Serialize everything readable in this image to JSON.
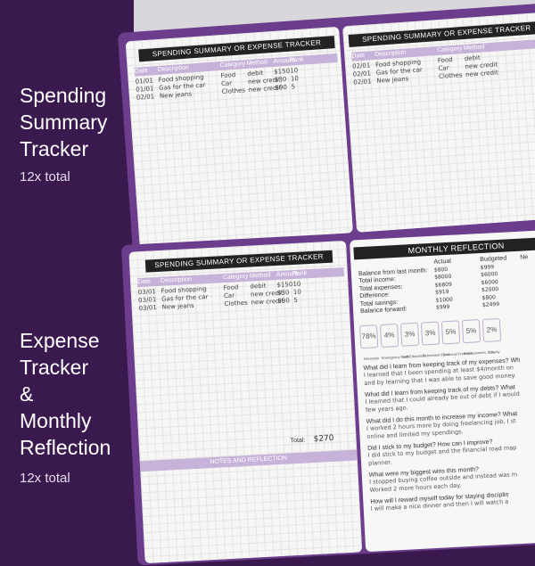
{
  "captions": {
    "top_title": [
      "Spending",
      "Summary",
      "Tracker"
    ],
    "top_sub": "12x total",
    "bottom_title": [
      "Expense",
      "Tracker",
      "&",
      "Monthly",
      "Reflection"
    ],
    "bottom_sub": "12x total"
  },
  "colors": {
    "background": "#3a1a4e",
    "accent": "#c7b3d9",
    "banner": "#222222"
  },
  "tracker": {
    "title": "SPENDING SUMMARY OR EXPENSE TRACKER",
    "columns": [
      "Date",
      "Description",
      "Category",
      "Method",
      "Amount",
      "Rank"
    ]
  },
  "page_top_left": {
    "rows": [
      [
        "01/01",
        "Food shopping",
        "Food",
        "debit",
        "$150",
        "10"
      ],
      [
        "01/01",
        "Gas for the car",
        "Car",
        "new credit",
        "$30",
        "10"
      ],
      [
        "02/01",
        "New jeans",
        "Clothes",
        "new credit",
        "$90",
        "5"
      ]
    ]
  },
  "page_top_right": {
    "rows": [
      [
        "02/01",
        "Food shopping",
        "Food",
        "debit"
      ],
      [
        "02/01",
        "Gas for the car",
        "Car",
        "new credit"
      ],
      [
        "02/01",
        "New jeans",
        "Clothes",
        "new credit"
      ]
    ]
  },
  "page_bottom_left": {
    "rows": [
      [
        "03/01",
        "Food shopping",
        "Food",
        "debit",
        "$150",
        "10"
      ],
      [
        "03/01",
        "Gas for the car",
        "Car",
        "new credit",
        "$30",
        "10"
      ],
      [
        "03/01",
        "New jeans",
        "Clothes",
        "new credit",
        "$90",
        "5"
      ]
    ],
    "total_label": "Total:",
    "total_value": "$270",
    "notes_label": "NOTES AND REFLECTION"
  },
  "reflection": {
    "title": "MONTHLY REFLECTION",
    "col_actual": "Actual",
    "col_budgeted": "Budgeted",
    "col_next": "Ne",
    "lines": [
      [
        "Balance from last month:",
        "$800",
        "$999"
      ],
      [
        "Total income:",
        "$8000",
        "$6000"
      ],
      [
        "Total expenses:",
        "$6809",
        "$6000"
      ],
      [
        "Difference:",
        "$919",
        "$2000"
      ],
      [
        "Total savings:",
        "$1000",
        "$800"
      ],
      [
        "Balance forward:",
        "$999",
        "$2499"
      ]
    ],
    "jars": [
      [
        "78%",
        "Necessity"
      ],
      [
        "4%",
        "Emergency Fund"
      ],
      [
        "3%",
        "Self-Education"
      ],
      [
        "3%",
        "Retirement Fund"
      ],
      [
        "5%",
        "Financial Freedom"
      ],
      [
        "5%",
        "Entertainment, Fun"
      ],
      [
        "2%",
        "Charity"
      ]
    ],
    "qa": [
      [
        "What did I learn from keeping track of my expenses? Wh",
        "I learned that I been spending at least $4/month on",
        "and by learning that I was able to save good money."
      ],
      [
        "What did I learn from keeping track of my debts? What",
        "I learned that I could already be out of debt if I would",
        "few years ago."
      ],
      [
        "What did I do this month to increase my income? What",
        "I worked 2 hours more by doing freelancing job, I st",
        "online and limited my spendings."
      ],
      [
        "Did I stick to my budget? How can I improve?",
        "I did stick to my budget and the financial road map",
        "planner."
      ],
      [
        "What were my biggest wins this month?",
        "I stopped buying coffee outside and instead was m",
        "Worked 2 more hours each day."
      ],
      [
        "How will I reward myself today for staying disciplin",
        "I will make a nice dinner and then I will watch a",
        ""
      ]
    ]
  }
}
